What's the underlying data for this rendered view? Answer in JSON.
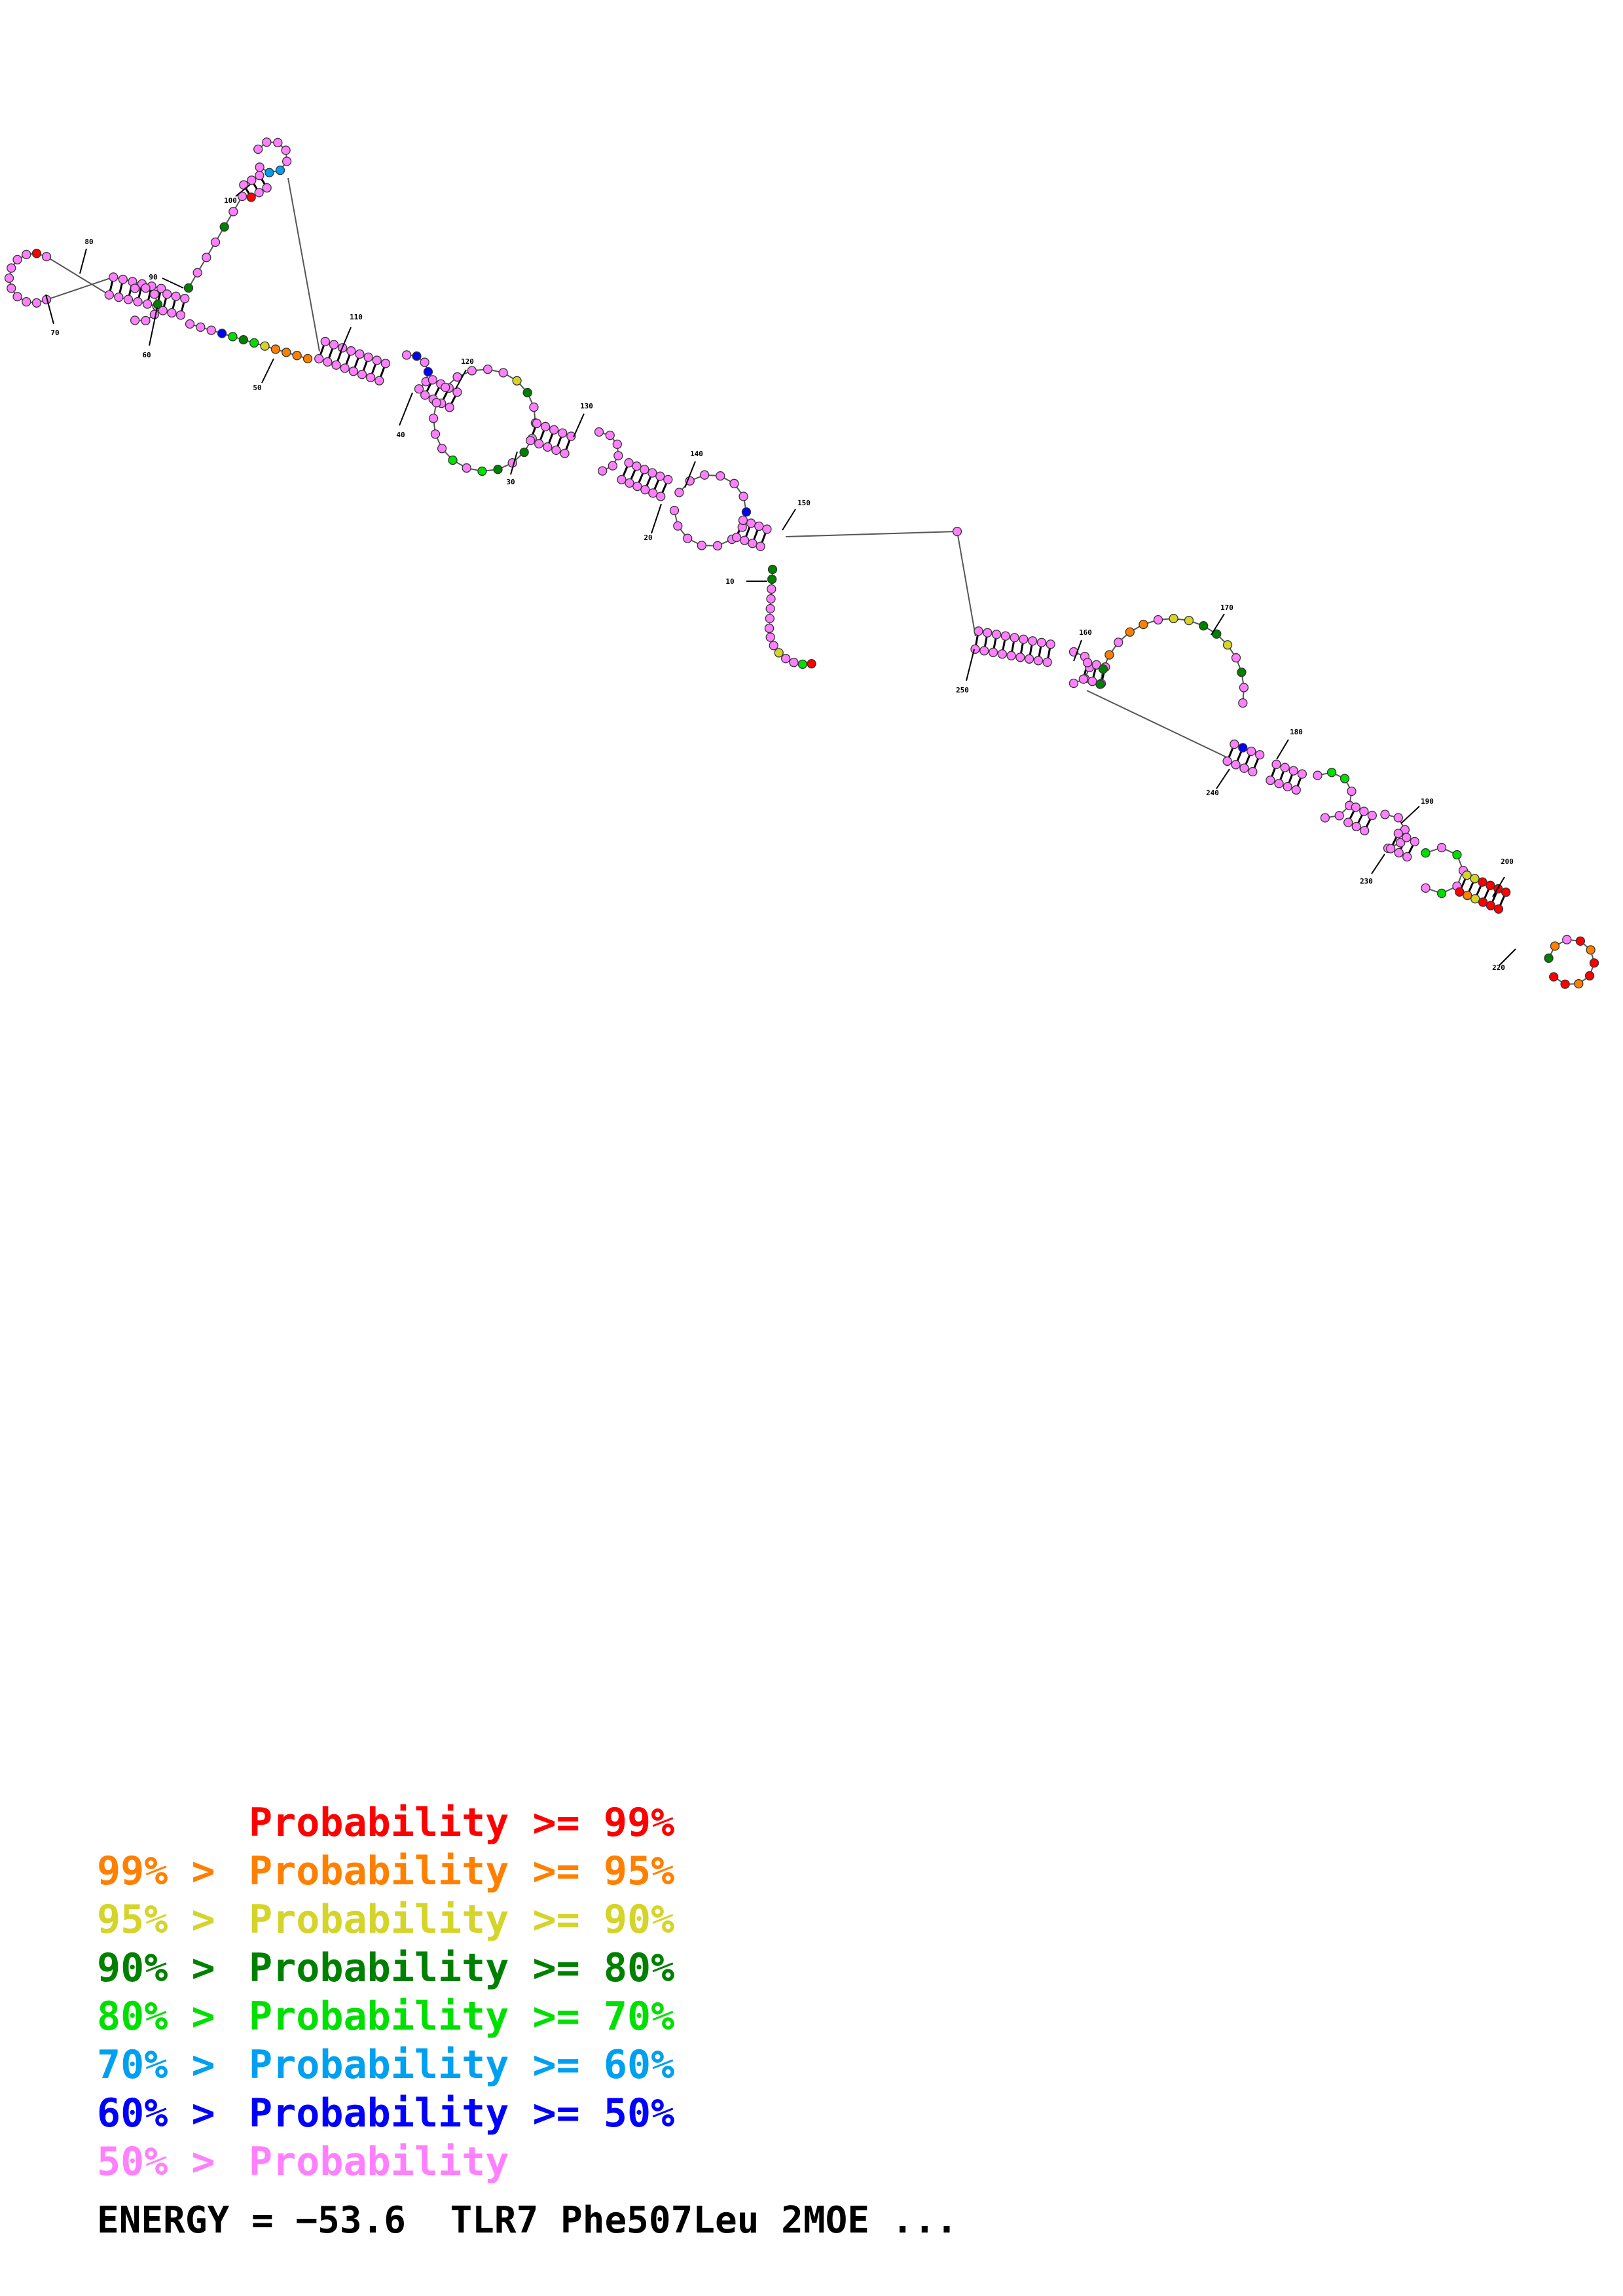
{
  "legend": {
    "colors": [
      "#ff0000",
      "#ff8000",
      "#d4d42a",
      "#008000",
      "#00e000",
      "#00a0f0",
      "#0000ff",
      "#ff80ff"
    ],
    "rows": [
      {
        "prefix": "",
        "label": "Probability",
        "suffix": ">= 99%"
      },
      {
        "prefix": "99% >",
        "label": "Probability",
        "suffix": ">= 95%"
      },
      {
        "prefix": "95% >",
        "label": "Probability",
        "suffix": ">= 90%"
      },
      {
        "prefix": "90% >",
        "label": "Probability",
        "suffix": ">= 80%"
      },
      {
        "prefix": "80% >",
        "label": "Probability",
        "suffix": ">= 70%"
      },
      {
        "prefix": "70% >",
        "label": "Probability",
        "suffix": ">= 60%"
      },
      {
        "prefix": "60% >",
        "label": "Probability",
        "suffix": ">= 50%"
      },
      {
        "prefix": "50% >",
        "label": "Probability",
        "suffix": ""
      }
    ]
  },
  "energy_label": "ENERGY = −53.6  TLR7 Phe507Leu 2MOE ...",
  "structure": {
    "type": "RNA secondary structure",
    "position_labels": [
      "10",
      "20",
      "30",
      "40",
      "50",
      "60",
      "70",
      "80",
      "90",
      "100",
      "110",
      "120",
      "130",
      "140",
      "150",
      "160",
      "170",
      "180",
      "190",
      "200",
      "220",
      "230",
      "240",
      "250"
    ]
  }
}
